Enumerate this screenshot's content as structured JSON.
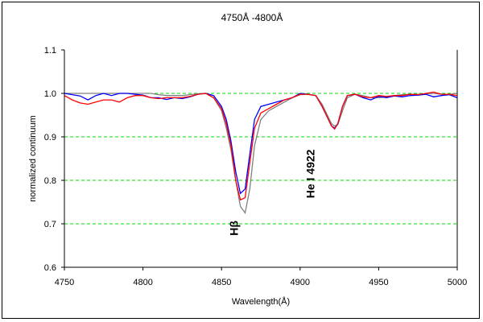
{
  "chart_data": {
    "type": "line",
    "title": "4750Å -4800Å",
    "xlabel": "Wavelength(Å)",
    "ylabel": "normalized continuum",
    "xlim": [
      4750,
      5000
    ],
    "ylim": [
      0.6,
      1.1
    ],
    "xticks": [
      4750,
      4800,
      4850,
      4900,
      4950,
      5000
    ],
    "yticks": [
      "0.6",
      "0.7",
      "0.8",
      "0.9",
      "1.0",
      "1.1"
    ],
    "grid": true,
    "grid_color": "#00dd00",
    "x": [
      4750,
      4755,
      4760,
      4765,
      4770,
      4775,
      4780,
      4785,
      4790,
      4795,
      4800,
      4805,
      4810,
      4815,
      4820,
      4825,
      4830,
      4835,
      4840,
      4845,
      4850,
      4853,
      4856,
      4859,
      4862,
      4865,
      4868,
      4871,
      4875,
      4880,
      4885,
      4890,
      4895,
      4900,
      4905,
      4910,
      4914,
      4918,
      4920,
      4922,
      4924,
      4927,
      4930,
      4935,
      4940,
      4945,
      4950,
      4955,
      4960,
      4965,
      4970,
      4975,
      4980,
      4985,
      4990,
      4995,
      5000
    ],
    "series": [
      {
        "color": "#808080",
        "values": [
          1.0,
          1.0,
          1.0,
          1.0,
          1.0,
          1.0,
          1.0,
          1.0,
          1.0,
          1.0,
          1.0,
          1.0,
          0.997,
          0.995,
          0.995,
          0.995,
          0.997,
          0.999,
          1.0,
          0.99,
          0.96,
          0.92,
          0.87,
          0.8,
          0.74,
          0.725,
          0.78,
          0.88,
          0.94,
          0.96,
          0.97,
          0.98,
          0.99,
          0.997,
          0.998,
          0.995,
          0.975,
          0.945,
          0.93,
          0.925,
          0.928,
          0.96,
          0.99,
          0.998,
          0.995,
          0.99,
          0.99,
          0.992,
          0.995,
          0.997,
          0.998,
          0.998,
          0.999,
          1.0,
          0.998,
          0.998,
          1.0
        ]
      },
      {
        "color": "#0000ff",
        "values": [
          1.0,
          0.997,
          0.994,
          0.985,
          0.995,
          1.0,
          0.995,
          1.0,
          1.0,
          0.998,
          0.996,
          0.99,
          0.99,
          0.986,
          0.99,
          0.988,
          0.992,
          0.998,
          1.0,
          0.995,
          0.97,
          0.94,
          0.89,
          0.82,
          0.77,
          0.78,
          0.86,
          0.94,
          0.97,
          0.975,
          0.98,
          0.985,
          0.99,
          1.0,
          0.998,
          0.995,
          0.97,
          0.94,
          0.925,
          0.92,
          0.93,
          0.97,
          0.995,
          0.998,
          0.99,
          0.985,
          0.993,
          0.99,
          0.994,
          0.992,
          0.995,
          0.996,
          0.998,
          0.992,
          0.995,
          0.997,
          0.99
        ]
      },
      {
        "color": "#ff0000",
        "values": [
          0.995,
          0.985,
          0.978,
          0.975,
          0.98,
          0.985,
          0.985,
          0.98,
          0.99,
          0.995,
          0.995,
          0.99,
          0.988,
          0.99,
          0.99,
          0.99,
          0.993,
          0.998,
          1.0,
          0.99,
          0.965,
          0.93,
          0.88,
          0.8,
          0.755,
          0.76,
          0.84,
          0.92,
          0.955,
          0.965,
          0.975,
          0.985,
          0.99,
          0.998,
          0.998,
          0.995,
          0.97,
          0.94,
          0.925,
          0.918,
          0.93,
          0.97,
          0.995,
          0.998,
          0.992,
          0.99,
          0.995,
          0.993,
          0.995,
          0.995,
          0.998,
          0.997,
          1.0,
          1.003,
          0.998,
          0.998,
          0.995
        ]
      }
    ],
    "annotations": [
      {
        "text": "Hβ",
        "x": 4862,
        "y": 0.69
      },
      {
        "text": "He I 4922",
        "x": 4922,
        "y": 0.815
      }
    ]
  }
}
